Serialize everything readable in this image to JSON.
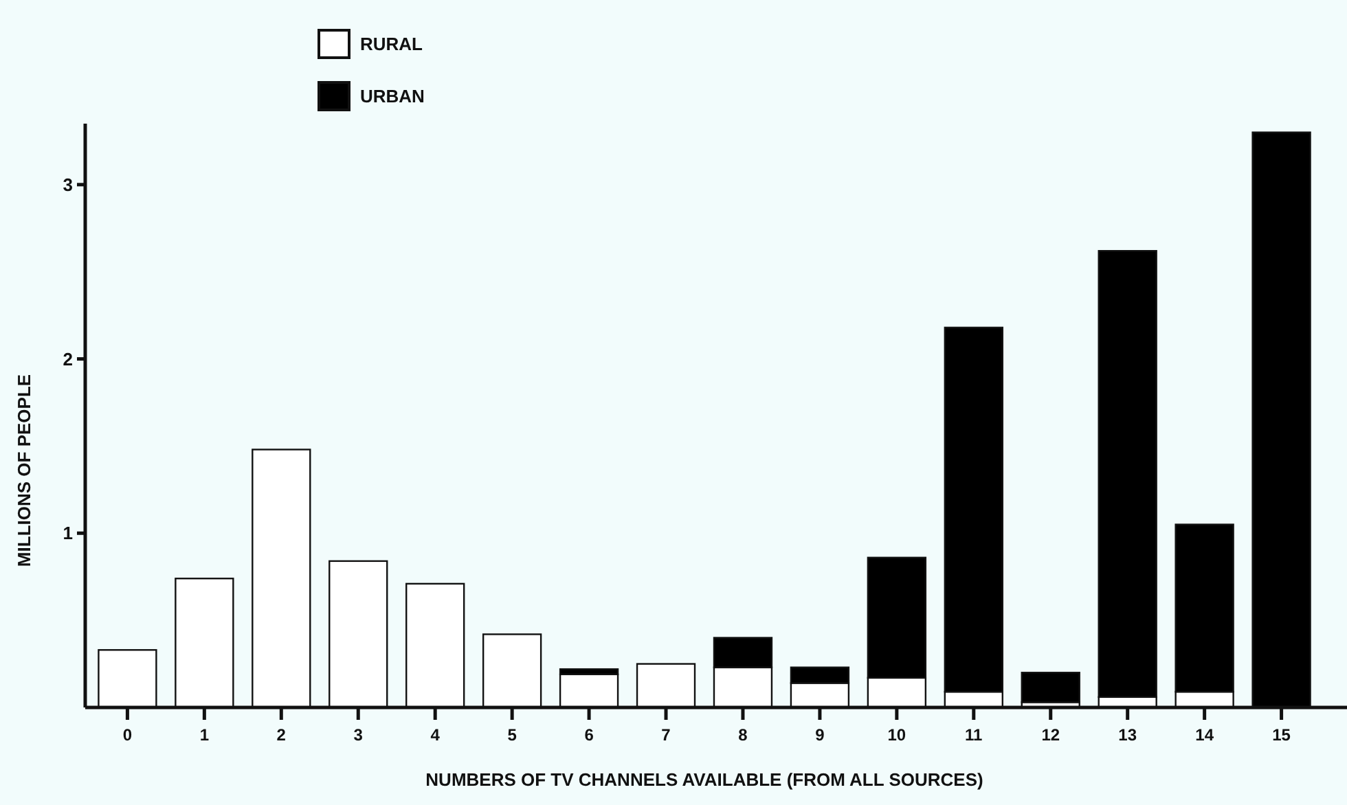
{
  "chart_data": {
    "type": "bar",
    "stacked": true,
    "xlabel": "NUMBERS OF TV CHANNELS AVAILABLE (FROM ALL SOURCES)",
    "ylabel": "MILLIONS OF PEOPLE",
    "categories": [
      "0",
      "1",
      "2",
      "3",
      "4",
      "5",
      "6",
      "7",
      "8",
      "9",
      "10",
      "11",
      "12",
      "13",
      "14",
      "15"
    ],
    "series": [
      {
        "name": "RURAL",
        "color": "#ffffff",
        "values": [
          0.33,
          0.74,
          1.48,
          0.84,
          0.71,
          0.42,
          0.19,
          0.25,
          0.23,
          0.14,
          0.17,
          0.09,
          0.03,
          0.06,
          0.09,
          0
        ]
      },
      {
        "name": "URBAN",
        "color": "#000000",
        "values": [
          0,
          0,
          0,
          0,
          0,
          0,
          0.03,
          0,
          0.17,
          0.09,
          0.69,
          2.09,
          0.17,
          2.56,
          0.96,
          3.3
        ]
      }
    ],
    "ylim": [
      0,
      3.35
    ],
    "yticks": [
      1,
      2,
      3
    ],
    "grid": false,
    "legend": "top left"
  }
}
